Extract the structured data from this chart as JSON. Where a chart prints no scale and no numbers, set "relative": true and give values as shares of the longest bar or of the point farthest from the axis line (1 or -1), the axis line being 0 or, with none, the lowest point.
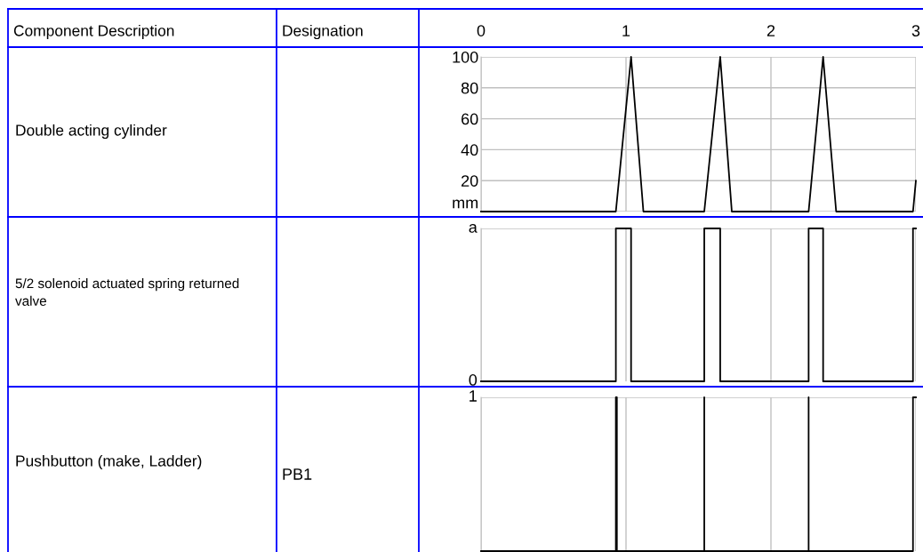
{
  "chart_data": [
    {
      "type": "line",
      "ylabel": "Double acting cylinder",
      "annotations": [
        "Component Description",
        "Designation"
      ],
      "xlim": [
        0,
        3
      ],
      "xticks": [
        0,
        1,
        2,
        3
      ],
      "ylim": [
        0,
        100
      ],
      "yticks": [
        {
          "value": 0,
          "label": "mm"
        },
        20,
        40,
        60,
        80,
        100
      ],
      "grid": true,
      "marker": "none",
      "line_style": "solid",
      "series": [
        {
          "color": "#000000",
          "x": [
            0,
            0.93,
            1.035,
            1.12,
            1.54,
            1.65,
            1.73,
            2.26,
            2.36,
            2.45,
            2.98,
            3.0
          ],
          "values": [
            0,
            0,
            100,
            0,
            0,
            100,
            0,
            0,
            100,
            0,
            0,
            20
          ]
        }
      ]
    },
    {
      "type": "line",
      "relative": true,
      "ylabel": "5/2 solenoid actuated spring returned valve",
      "annotations": [
        "a",
        "0"
      ],
      "xlim": [
        0,
        3
      ],
      "xticks": [
        0,
        1,
        2,
        3
      ],
      "grid": true,
      "tick_labels": "y",
      "marker": "none",
      "line_style": "solid",
      "series": [
        {
          "color": "#000000",
          "x": [
            0,
            0.93,
            0.93,
            1.035,
            1.035,
            1.54,
            1.54,
            1.65,
            1.65,
            2.26,
            2.26,
            2.36,
            2.36,
            2.98,
            2.98,
            3.0
          ],
          "values": [
            0,
            0,
            1,
            1,
            0,
            0,
            1,
            1,
            0,
            0,
            1,
            1,
            0,
            0,
            1,
            1
          ]
        }
      ]
    },
    {
      "type": "line",
      "relative": true,
      "ylabel": "Pushbutton (make, Ladder)",
      "annotations": [
        "1",
        "PB1"
      ],
      "xlim": [
        0,
        3
      ],
      "xticks": [
        0,
        1,
        2,
        3
      ],
      "grid": true,
      "tick_labels": "y",
      "marker": "none",
      "line_style": "solid",
      "series": [
        {
          "color": "#000000",
          "x": [
            0,
            0.93,
            0.93,
            0.937,
            0.937,
            1.54,
            1.54,
            1.54,
            2.26,
            2.26,
            2.26,
            2.98,
            2.98,
            3.0
          ],
          "values": [
            0,
            0,
            1,
            1,
            0,
            0,
            1,
            0,
            0,
            1,
            0,
            0,
            1,
            1
          ]
        }
      ]
    }
  ]
}
